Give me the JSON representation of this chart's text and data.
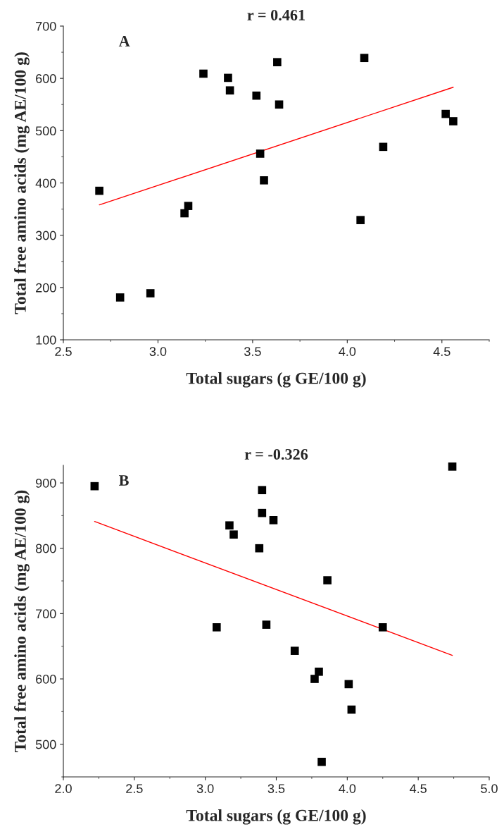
{
  "chart_data": [
    {
      "type": "scatter",
      "title": "r = 0.461",
      "xlabel": "Total sugars (g GE/100 g)",
      "ylabel": "Total free amino acids (mg AE/100 g)",
      "annotations": [
        "A"
      ],
      "xlim": [
        2.5,
        4.75
      ],
      "xticks": [
        {
          "value": 2.5,
          "label": "2.5"
        },
        {
          "value": 3.0,
          "label": "3.0"
        },
        {
          "value": 3.5,
          "label": "3.5"
        },
        {
          "value": 4.0,
          "label": "4.0"
        },
        {
          "value": 4.5,
          "label": "4.5"
        }
      ],
      "ylim": [
        100,
        700
      ],
      "yticks": [
        100,
        200,
        300,
        400,
        500,
        600,
        700
      ],
      "grid": false,
      "series": [
        {
          "marker": "square",
          "color": "#000000",
          "x": [
            2.69,
            2.8,
            2.96,
            3.14,
            3.16,
            3.24,
            3.37,
            3.38,
            3.52,
            3.54,
            3.56,
            3.63,
            3.64,
            4.07,
            4.09,
            4.19,
            4.52,
            4.56
          ],
          "values": [
            385,
            181,
            189,
            342,
            356,
            609,
            601,
            577,
            567,
            456,
            405,
            631,
            550,
            329,
            639,
            469,
            532,
            518
          ]
        },
        {
          "type": "line",
          "color": "#ff0000",
          "x": [
            2.69,
            4.56
          ],
          "values": [
            358,
            583
          ]
        }
      ]
    },
    {
      "type": "scatter",
      "title": "r = -0.326",
      "xlabel": "Total sugars (g GE/100 g)",
      "ylabel": "Total free amino acids (mg AE/100 g)",
      "annotations": [
        "B"
      ],
      "xlim": [
        2.0,
        5.0
      ],
      "xticks": [
        {
          "value": 2.0,
          "label": "2.0"
        },
        {
          "value": 2.5,
          "label": "2.5"
        },
        {
          "value": 3.0,
          "label": "3.0"
        },
        {
          "value": 3.5,
          "label": "3.5"
        },
        {
          "value": 4.0,
          "label": "4.0"
        },
        {
          "value": 4.5,
          "label": "4.5"
        },
        {
          "value": 5.0,
          "label": "5.0"
        }
      ],
      "ylim": [
        450,
        927
      ],
      "yticks": [
        500,
        600,
        700,
        800,
        900
      ],
      "grid": false,
      "series": [
        {
          "marker": "square",
          "color": "#000000",
          "x": [
            2.22,
            3.08,
            3.17,
            3.2,
            3.38,
            3.4,
            3.4,
            3.43,
            3.48,
            3.63,
            3.77,
            3.8,
            3.82,
            3.86,
            4.01,
            4.03,
            4.25,
            4.74
          ],
          "values": [
            895,
            679,
            835,
            821,
            800,
            889,
            854,
            683,
            843,
            643,
            600,
            611,
            473,
            751,
            592,
            553,
            679,
            925
          ]
        },
        {
          "type": "line",
          "color": "#ff0000",
          "x": [
            2.22,
            4.74
          ],
          "values": [
            841,
            636
          ]
        }
      ]
    }
  ]
}
